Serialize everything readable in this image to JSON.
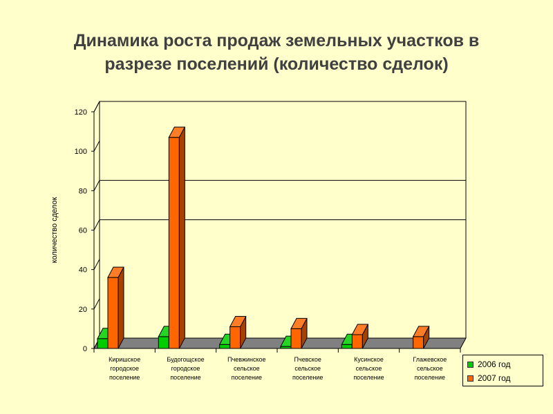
{
  "title_lines": [
    "Динамика роста продаж земельных участков в",
    "разрезе поселений (количество сделок)"
  ],
  "chart_data": {
    "type": "bar",
    "title": "Динамика роста продаж земельных участков в разрезе поселений (количество сделок)",
    "ylabel": "количество сделок",
    "xlabel": "",
    "ylim": [
      0,
      120
    ],
    "yticks": [
      0,
      20,
      40,
      60,
      80,
      100,
      120
    ],
    "categories": [
      [
        "Киришское",
        "городское",
        "поселение"
      ],
      [
        "Будогощское",
        "городское",
        "поселение"
      ],
      [
        "Пчевжинское",
        "сельское",
        "поселение"
      ],
      [
        "Пчевское",
        "сельское",
        "поселение"
      ],
      [
        "Кусинское",
        "сельское",
        "поселение"
      ],
      [
        "Глажевское",
        "сельское",
        "поселение"
      ]
    ],
    "series": [
      {
        "name": "2006 год",
        "color": "#00CC00",
        "values": [
          5,
          6,
          2,
          1,
          2,
          0
        ]
      },
      {
        "name": "2007 год",
        "color": "#FF6600",
        "values": [
          36,
          107,
          11,
          10,
          7,
          6
        ]
      }
    ],
    "grid": true,
    "legend_position": "bottom-right"
  }
}
